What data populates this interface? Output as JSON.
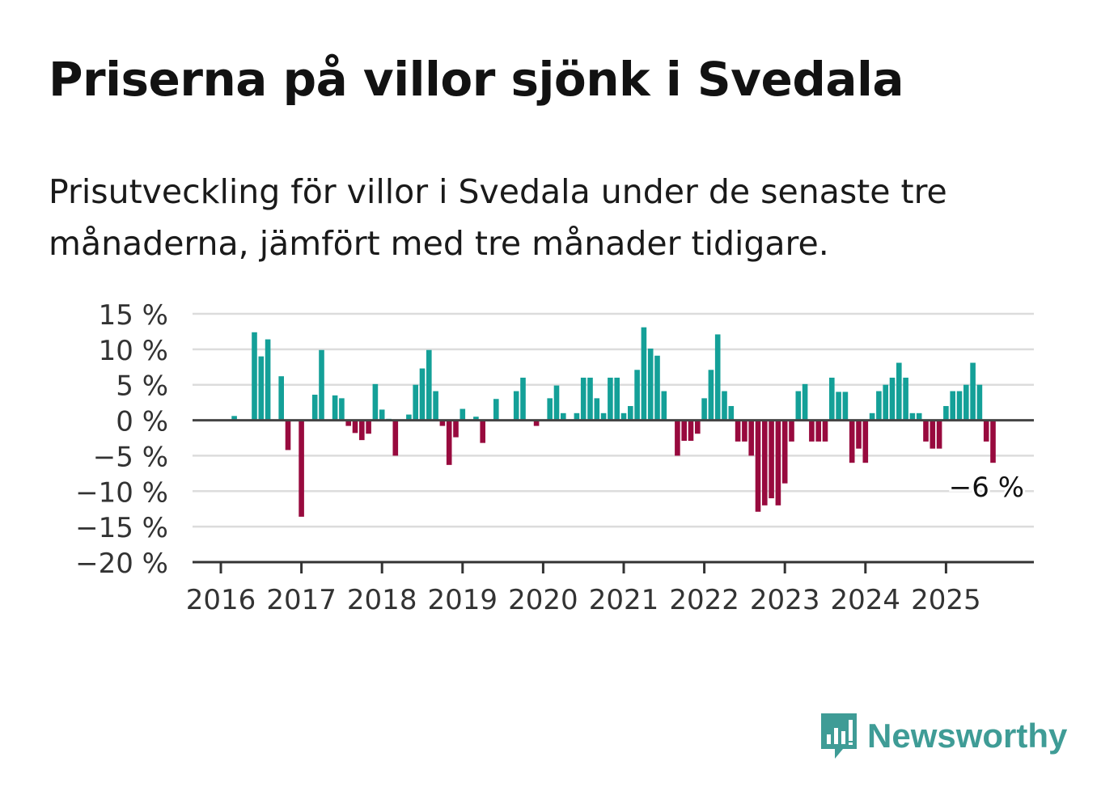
{
  "title": "Priserna på villor sjönk i Svedala",
  "subtitle": "Prisutveckling för villor i Svedala under de senaste tre månaderna, jämfört med tre månader tidigare.",
  "brand": {
    "name": "Newsworthy",
    "color": "#3f9c96",
    "icon": "speech-bubble-bar-chart-icon"
  },
  "chart_data": {
    "type": "bar",
    "title": "Priserna på villor sjönk i Svedala",
    "xlabel": "",
    "ylabel": "",
    "ylim": [
      -20,
      15
    ],
    "yticks": [
      15,
      10,
      5,
      0,
      -5,
      -10,
      -15,
      -20
    ],
    "ytick_labels": [
      "15 %",
      "10 %",
      "5 %",
      "0 %",
      "−5 %",
      "−10 %",
      "−15 %",
      "−20 %"
    ],
    "xtick_labels": [
      "2016",
      "2017",
      "2018",
      "2019",
      "2020",
      "2021",
      "2022",
      "2023",
      "2024",
      "2025"
    ],
    "x_start": "2016-01",
    "frequency": "monthly",
    "grid": true,
    "positive_color": "#14a098",
    "negative_color": "#980a3e",
    "annotation": {
      "text": "−6 %",
      "target": "last"
    },
    "values": [
      0,
      0,
      0.6,
      0,
      0,
      12.4,
      9,
      11.4,
      0,
      6.2,
      -4.2,
      0,
      -13.6,
      0,
      3.6,
      9.9,
      0,
      3.5,
      3.1,
      -0.8,
      -1.8,
      -2.8,
      -1.9,
      5.1,
      1.5,
      0.2,
      -5,
      0,
      0.8,
      5,
      7.3,
      9.9,
      4.1,
      -0.8,
      -6.3,
      -2.4,
      1.6,
      0,
      0.5,
      -3.2,
      0,
      3,
      0,
      0,
      4.1,
      6,
      0,
      -0.8,
      0,
      3.1,
      4.9,
      1,
      0,
      1,
      6,
      6,
      3.1,
      1,
      6,
      6,
      1,
      2,
      7.1,
      13.1,
      10.1,
      9.1,
      4.1,
      0,
      -5,
      -2.9,
      -2.9,
      -1.9,
      3.1,
      7.1,
      12.1,
      4.1,
      2,
      -3,
      -3,
      -5,
      -12.9,
      -12,
      -11,
      -12,
      -8.9,
      -3,
      4.1,
      5.1,
      -3,
      -3,
      -3,
      6,
      4,
      4,
      -6,
      -4,
      -6,
      1,
      4.1,
      5,
      6,
      8.1,
      6,
      1,
      1,
      -3,
      -4,
      -4,
      2,
      4.1,
      4.1,
      5,
      8.1,
      5,
      -3,
      -6
    ]
  }
}
